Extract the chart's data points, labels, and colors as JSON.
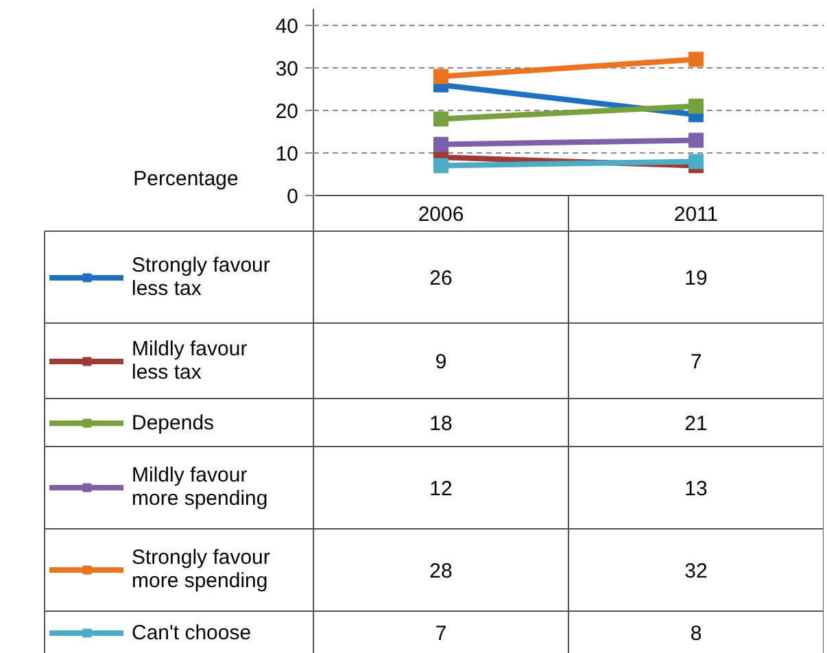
{
  "chart_data": {
    "type": "line",
    "ylabel": "Percentage",
    "categories": [
      "2006",
      "2011"
    ],
    "ylim": [
      0,
      40
    ],
    "yticks": [
      0,
      10,
      20,
      30,
      40
    ],
    "grid": "y",
    "marker": "square",
    "line_style": "solid",
    "legend": "left",
    "series": [
      {
        "name": "Strongly favour less tax",
        "color": "#2070c0",
        "values": [
          26,
          19
        ],
        "value_labels": [
          "26",
          "19"
        ]
      },
      {
        "name": "Mildly favour less tax",
        "color": "#a03a36",
        "values": [
          9,
          7
        ],
        "value_labels": [
          "9",
          "7"
        ]
      },
      {
        "name": "Depends",
        "color": "#78a03c",
        "values": [
          18,
          21
        ],
        "value_labels": [
          "18",
          "21"
        ]
      },
      {
        "name": "Mildly favour more spending",
        "color": "#7e60a8",
        "values": [
          12,
          13
        ],
        "value_labels": [
          "12",
          "13"
        ]
      },
      {
        "name": "Strongly favour more spending",
        "color": "#ec7420",
        "values": [
          28,
          32
        ],
        "value_labels": [
          "28",
          "32"
        ]
      },
      {
        "name": "Can't choose",
        "color": "#4aacc6",
        "values": [
          7,
          8
        ],
        "value_labels": [
          "7",
          "8"
        ]
      }
    ]
  }
}
